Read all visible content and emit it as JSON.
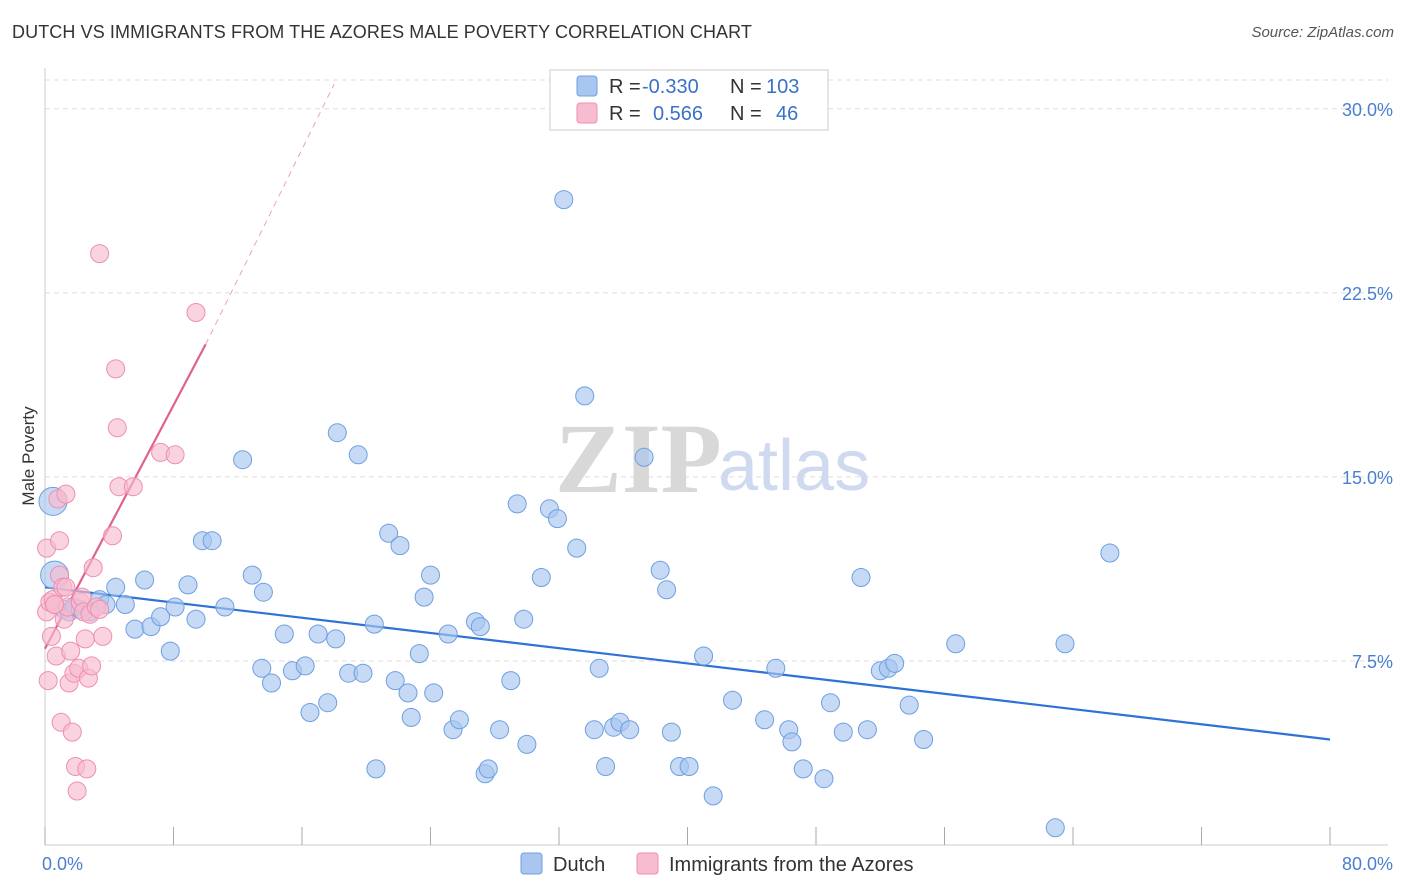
{
  "title": "DUTCH VS IMMIGRANTS FROM THE AZORES MALE POVERTY CORRELATION CHART",
  "source": "Source: ZipAtlas.com",
  "colors": {
    "dutch": "#a8c6f0",
    "dutch_stroke": "#6f9fe0",
    "dutch_line": "#2f72d6",
    "azores": "#f7bcd0",
    "azores_stroke": "#ef8fb0",
    "azores_line": "#e0628f",
    "grid": "#dddddd",
    "axis_label": "#4a7fd0"
  },
  "legend": {
    "r_label": "R =",
    "n_label": "N =",
    "rows": [
      {
        "name": "dutch",
        "r": "-0.330",
        "n": "103"
      },
      {
        "name": "azores",
        "r": "0.566",
        "n": "46"
      }
    ]
  },
  "bottom_legend": [
    {
      "name": "dutch",
      "label": "Dutch"
    },
    {
      "name": "azores",
      "label": "Immigrants from the Azores"
    }
  ],
  "watermark": {
    "zip": "ZIP",
    "atlas": "atlas"
  },
  "chart_data": {
    "type": "scatter",
    "title": "DUTCH VS IMMIGRANTS FROM THE AZORES MALE POVERTY CORRELATION CHART",
    "xlabel": "",
    "ylabel": "Male Poverty",
    "xlim": [
      0,
      80
    ],
    "ylim": [
      0,
      31.5
    ],
    "x_tick_labels": [
      "0.0%",
      "80.0%"
    ],
    "y_ticks": [
      7.5,
      15.0,
      22.5,
      30.0
    ],
    "y_tick_labels": [
      "7.5%",
      "15.0%",
      "22.5%",
      "30.0%"
    ],
    "grid": true,
    "legend_position": "top-center",
    "series": [
      {
        "name": "Dutch",
        "r": -0.33,
        "n": 103,
        "trend": {
          "x": [
            0,
            80
          ],
          "y": [
            10.5,
            4.3
          ]
        },
        "points": [
          [
            0.5,
            14.0
          ],
          [
            0.6,
            11.0
          ],
          [
            1.2,
            9.6
          ],
          [
            1.5,
            9.5
          ],
          [
            1.8,
            9.7
          ],
          [
            2.2,
            9.6
          ],
          [
            2.8,
            9.5
          ],
          [
            3.4,
            10.0
          ],
          [
            3.8,
            9.8
          ],
          [
            4.4,
            10.5
          ],
          [
            5.0,
            9.8
          ],
          [
            5.6,
            8.8
          ],
          [
            6.2,
            10.8
          ],
          [
            6.6,
            8.9
          ],
          [
            7.2,
            9.3
          ],
          [
            7.8,
            7.9
          ],
          [
            8.1,
            9.7
          ],
          [
            8.9,
            10.6
          ],
          [
            9.8,
            12.4
          ],
          [
            9.4,
            9.2
          ],
          [
            10.4,
            12.4
          ],
          [
            11.2,
            9.7
          ],
          [
            12.3,
            15.7
          ],
          [
            12.9,
            11.0
          ],
          [
            13.6,
            10.3
          ],
          [
            13.5,
            7.2
          ],
          [
            14.1,
            6.6
          ],
          [
            14.9,
            8.6
          ],
          [
            15.4,
            7.1
          ],
          [
            16.2,
            7.3
          ],
          [
            16.5,
            5.4
          ],
          [
            17.0,
            8.6
          ],
          [
            17.6,
            5.8
          ],
          [
            18.1,
            8.4
          ],
          [
            18.2,
            16.8
          ],
          [
            18.9,
            7.0
          ],
          [
            19.5,
            15.9
          ],
          [
            19.8,
            7.0
          ],
          [
            20.5,
            9.0
          ],
          [
            20.6,
            3.1
          ],
          [
            21.4,
            12.7
          ],
          [
            21.8,
            6.7
          ],
          [
            22.1,
            12.2
          ],
          [
            22.6,
            6.2
          ],
          [
            22.8,
            5.2
          ],
          [
            23.3,
            7.8
          ],
          [
            23.6,
            10.1
          ],
          [
            24.0,
            11.0
          ],
          [
            24.2,
            6.2
          ],
          [
            25.1,
            8.6
          ],
          [
            25.4,
            4.7
          ],
          [
            25.8,
            5.1
          ],
          [
            26.8,
            9.1
          ],
          [
            27.1,
            8.9
          ],
          [
            27.4,
            2.9
          ],
          [
            27.6,
            3.1
          ],
          [
            28.3,
            4.7
          ],
          [
            29.0,
            6.7
          ],
          [
            29.4,
            13.9
          ],
          [
            29.8,
            9.2
          ],
          [
            30.0,
            4.1
          ],
          [
            30.9,
            10.9
          ],
          [
            31.4,
            13.7
          ],
          [
            31.9,
            13.3
          ],
          [
            32.3,
            26.3
          ],
          [
            33.1,
            12.1
          ],
          [
            33.6,
            18.3
          ],
          [
            34.2,
            4.7
          ],
          [
            34.5,
            7.2
          ],
          [
            34.9,
            3.2
          ],
          [
            35.4,
            4.8
          ],
          [
            35.8,
            5.0
          ],
          [
            36.4,
            4.7
          ],
          [
            37.3,
            15.8
          ],
          [
            38.3,
            11.2
          ],
          [
            38.7,
            10.4
          ],
          [
            39.0,
            4.6
          ],
          [
            39.5,
            3.2
          ],
          [
            40.1,
            3.2
          ],
          [
            41.0,
            7.7
          ],
          [
            41.6,
            2.0
          ],
          [
            42.8,
            5.9
          ],
          [
            44.8,
            5.1
          ],
          [
            45.5,
            7.2
          ],
          [
            46.3,
            4.7
          ],
          [
            46.5,
            4.2
          ],
          [
            47.2,
            3.1
          ],
          [
            48.5,
            2.7
          ],
          [
            48.9,
            5.8
          ],
          [
            49.7,
            4.6
          ],
          [
            50.8,
            10.9
          ],
          [
            51.2,
            4.7
          ],
          [
            52.0,
            7.1
          ],
          [
            52.5,
            7.2
          ],
          [
            52.9,
            7.4
          ],
          [
            53.8,
            5.7
          ],
          [
            54.7,
            4.3
          ],
          [
            56.7,
            8.2
          ],
          [
            62.9,
            0.7
          ],
          [
            63.5,
            8.2
          ],
          [
            66.3,
            11.9
          ]
        ]
      },
      {
        "name": "Immigrants from the Azores",
        "r": 0.566,
        "n": 46,
        "trend": {
          "x": [
            0,
            10
          ],
          "y": [
            8.0,
            20.4
          ]
        },
        "trend_extension": {
          "x": [
            10,
            18
          ],
          "y": [
            20.4,
            31.0
          ]
        },
        "points": [
          [
            0.1,
            12.1
          ],
          [
            0.1,
            9.5
          ],
          [
            0.2,
            6.7
          ],
          [
            0.3,
            9.9
          ],
          [
            0.4,
            8.5
          ],
          [
            0.5,
            10.0
          ],
          [
            0.6,
            9.8
          ],
          [
            0.7,
            7.7
          ],
          [
            0.8,
            14.1
          ],
          [
            0.9,
            12.4
          ],
          [
            0.9,
            11.0
          ],
          [
            1.0,
            5.0
          ],
          [
            1.1,
            10.5
          ],
          [
            1.2,
            9.2
          ],
          [
            1.3,
            14.3
          ],
          [
            1.4,
            9.7
          ],
          [
            1.5,
            6.6
          ],
          [
            1.6,
            7.9
          ],
          [
            1.7,
            4.6
          ],
          [
            1.8,
            7.0
          ],
          [
            1.9,
            3.2
          ],
          [
            2.0,
            2.2
          ],
          [
            2.1,
            7.2
          ],
          [
            2.2,
            9.9
          ],
          [
            2.3,
            10.1
          ],
          [
            2.4,
            9.5
          ],
          [
            2.5,
            8.4
          ],
          [
            2.6,
            3.1
          ],
          [
            2.7,
            6.8
          ],
          [
            2.8,
            9.4
          ],
          [
            2.9,
            7.3
          ],
          [
            3.0,
            11.3
          ],
          [
            3.2,
            9.7
          ],
          [
            3.4,
            9.6
          ],
          [
            3.6,
            8.5
          ],
          [
            3.4,
            24.1
          ],
          [
            4.2,
            12.6
          ],
          [
            4.4,
            19.4
          ],
          [
            4.5,
            17.0
          ],
          [
            4.6,
            14.6
          ],
          [
            5.5,
            14.6
          ],
          [
            7.2,
            16.0
          ],
          [
            8.1,
            15.9
          ],
          [
            9.4,
            21.7
          ],
          [
            0.6,
            9.8
          ],
          [
            1.3,
            10.5
          ]
        ]
      }
    ]
  }
}
